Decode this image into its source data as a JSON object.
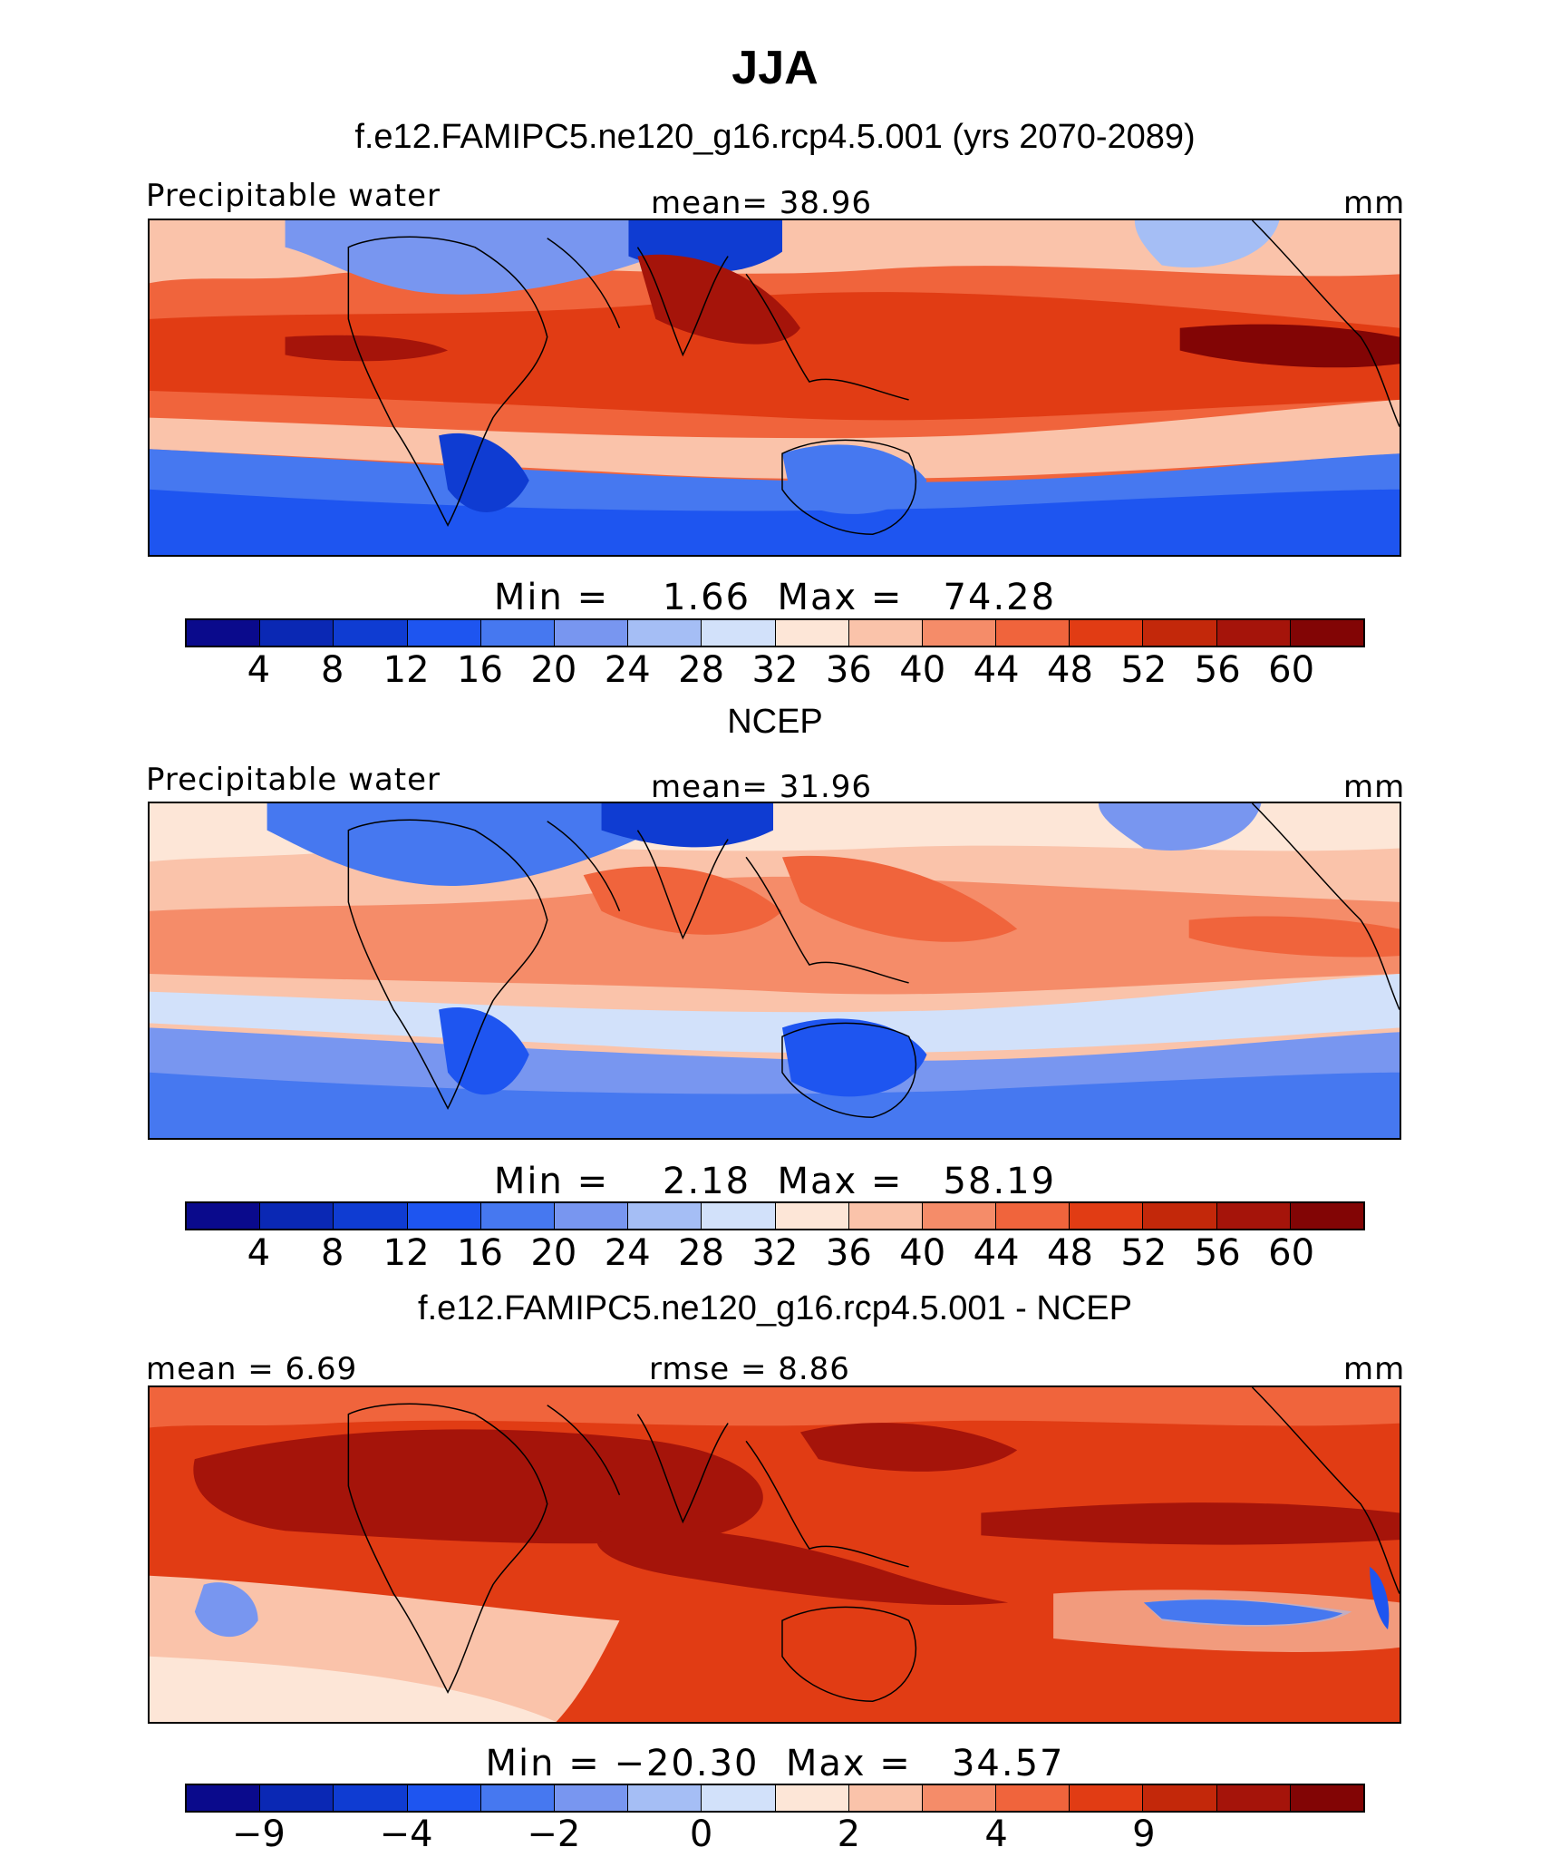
{
  "figure": {
    "title": "JJA",
    "palette": [
      "#0a0a8c",
      "#0a28b4",
      "#0f3cd2",
      "#1e55f0",
      "#4678f0",
      "#7896f0",
      "#a5bef5",
      "#d2e1fa",
      "#fde6d7",
      "#fac3aa",
      "#f58c69",
      "#f0643c",
      "#e13c14",
      "#c3280a",
      "#a5140a",
      "#820505"
    ]
  },
  "panels": [
    {
      "title": "f.e12.FAMIPC5.ne120_g16.rcp4.5.001 (yrs 2070-2089)",
      "left_label": "Precipitable water",
      "center_label": "mean=  38.96",
      "units": "mm",
      "min_max": "Min =    1.66  Max =   74.28",
      "tick_labels": [
        "4",
        "8",
        "12",
        "16",
        "20",
        "24",
        "28",
        "32",
        "36",
        "40",
        "44",
        "48",
        "52",
        "56",
        "60"
      ],
      "map_name": "model-precipitable-water-map"
    },
    {
      "title": "NCEP",
      "left_label": "Precipitable water",
      "center_label": "mean=  31.96",
      "units": "mm",
      "min_max": "Min =    2.18  Max =   58.19",
      "tick_labels": [
        "4",
        "8",
        "12",
        "16",
        "20",
        "24",
        "28",
        "32",
        "36",
        "40",
        "44",
        "48",
        "52",
        "56",
        "60"
      ],
      "map_name": "ncep-precipitable-water-map"
    },
    {
      "title": "f.e12.FAMIPC5.ne120_g16.rcp4.5.001 - NCEP",
      "left_label": "mean =   6.69",
      "center_label": "rmse =   8.86",
      "units": "mm",
      "min_max": "Min = −20.30  Max =   34.57",
      "tick_labels": [
        "−9",
        "−4",
        "−2",
        "0",
        "2",
        "4",
        "9"
      ],
      "map_name": "difference-map"
    }
  ]
}
